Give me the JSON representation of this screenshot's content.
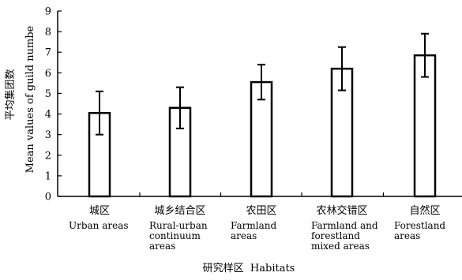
{
  "chart_data": {
    "type": "bar",
    "title": "",
    "ylabel_cn": "平均集团数",
    "ylabel_en": "Mean values of guild numbe",
    "xlabel": "研究样区  Habitats",
    "ylim": [
      0,
      9
    ],
    "yticks": [
      "0",
      "1",
      "2",
      "3",
      "4",
      "5",
      "6",
      "7",
      "8",
      "9"
    ],
    "categories": [
      {
        "cn": "城区",
        "en": [
          "Urban areas"
        ]
      },
      {
        "cn": "城乡结合区",
        "en": [
          "Rural-urban",
          "continuum",
          "areas"
        ]
      },
      {
        "cn": "农田区",
        "en": [
          "Farmland",
          "areas"
        ]
      },
      {
        "cn": "农林交错区",
        "en": [
          "Farmland and",
          "forestland",
          "mixed areas"
        ]
      },
      {
        "cn": "自然区",
        "en": [
          "Forestland",
          "areas"
        ]
      }
    ],
    "values": [
      4.05,
      4.3,
      5.55,
      6.2,
      6.85
    ],
    "errors": [
      1.05,
      1.0,
      0.85,
      1.05,
      1.05
    ],
    "bar_fill": "#ffffff",
    "bar_stroke": "#000000",
    "grid": false,
    "legend": "none"
  }
}
